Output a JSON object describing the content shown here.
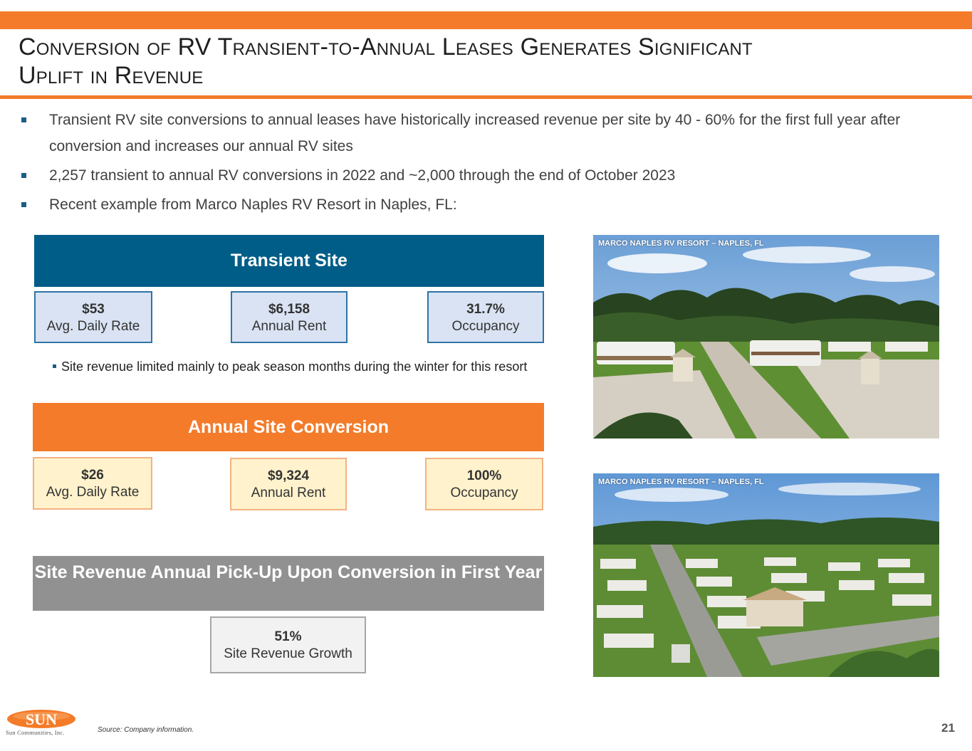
{
  "header": {
    "title_line1": "Conversion of RV Transient-to-Annual Leases Generates Significant",
    "title_line2": "Uplift in Revenue"
  },
  "bullets": [
    "Transient RV site conversions to annual leases have historically increased revenue per site by 40 - 60% for the first full year after conversion and increases our annual RV sites",
    "2,257 transient to annual RV conversions in 2022 and ~2,000 through the end of October 2023",
    "Recent example from Marco Naples RV Resort in Naples, FL:"
  ],
  "transient": {
    "heading": "Transient Site",
    "stats": [
      {
        "value": "$53",
        "label": "Avg. Daily Rate"
      },
      {
        "value": "$6,158",
        "label": "Annual Rent"
      },
      {
        "value": "31.7%",
        "label": "Occupancy"
      }
    ],
    "note": "Site revenue limited mainly to peak season months during the winter for this resort"
  },
  "annual": {
    "heading": "Annual Site Conversion",
    "stats": [
      {
        "value": "$26",
        "label": "Avg. Daily Rate"
      },
      {
        "value": "$9,324",
        "label": "Annual Rent"
      },
      {
        "value": "100%",
        "label": "Occupancy"
      }
    ]
  },
  "pickup": {
    "heading": "Site Revenue Annual Pick-Up Upon Conversion in First Year",
    "stat": {
      "value": "51%",
      "label": "Site Revenue Growth"
    }
  },
  "photos": [
    {
      "caption": "MARCO NAPLES RV RESORT – NAPLES, FL"
    },
    {
      "caption": "MARCO NAPLES RV RESORT – NAPLES, FL"
    }
  ],
  "footer": {
    "logo_text": "SUN",
    "logo_subtext": "Sun Communities, Inc.",
    "source": "Source: Company information.",
    "page_number": "21"
  },
  "colors": {
    "orange": "#f47b2a",
    "blue": "#005d87",
    "grey": "#919191"
  }
}
